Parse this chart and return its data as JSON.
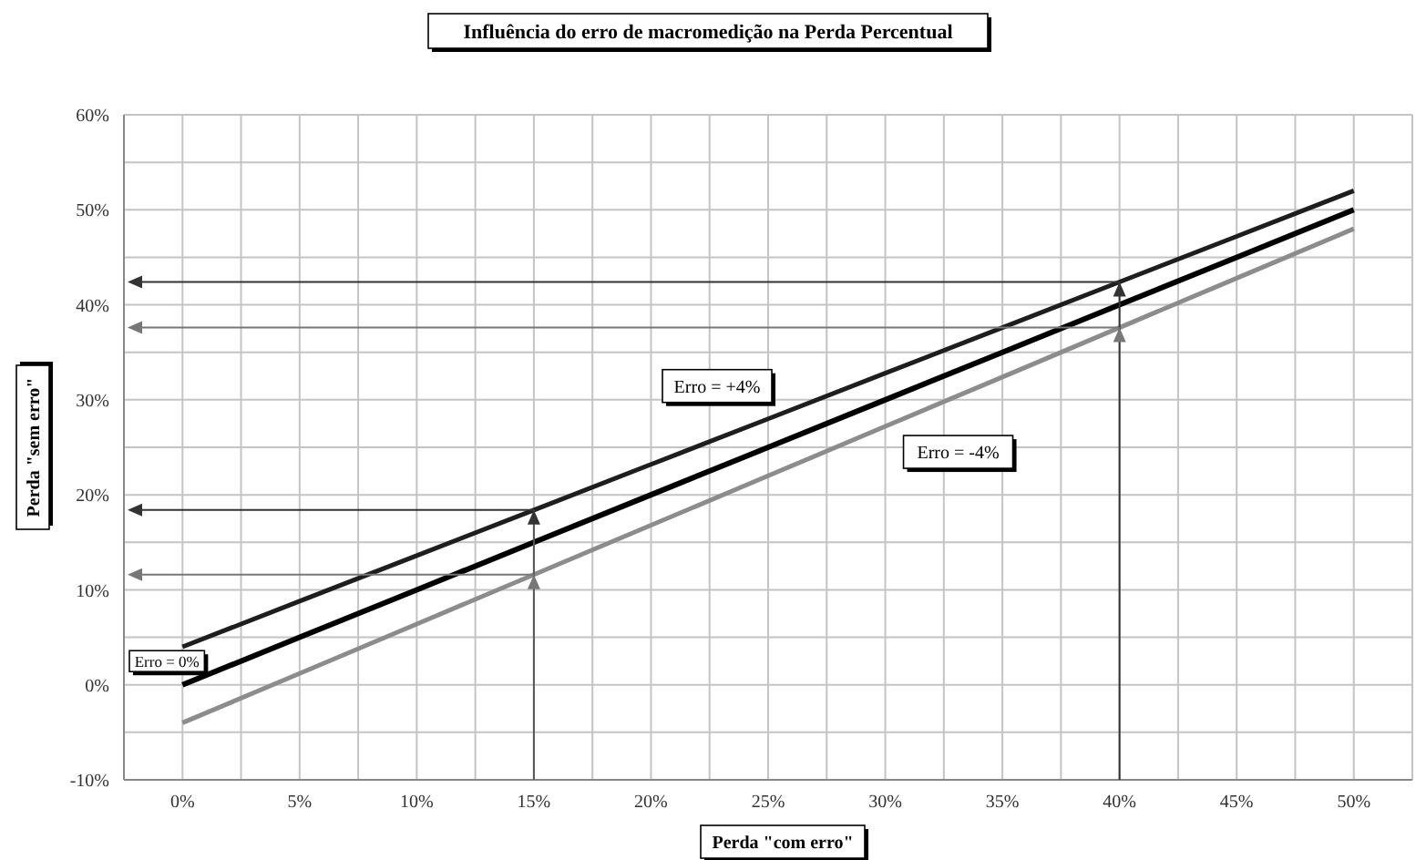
{
  "chart_data": {
    "type": "line",
    "title": "Influência do erro de macromedição na Perda Percentual",
    "xlabel": "Perda \"com erro\"",
    "ylabel": "Perda \"sem erro\"",
    "x": [
      0,
      5,
      10,
      15,
      20,
      25,
      30,
      35,
      40,
      45,
      50
    ],
    "series": [
      {
        "name": "Erro = +4%",
        "color": "#1e1e1e",
        "values": [
          4,
          8.8,
          13.6,
          18.4,
          23.2,
          28,
          32.8,
          37.6,
          42.4,
          47.2,
          52
        ]
      },
      {
        "name": "Erro = 0%",
        "color": "#000000",
        "values": [
          0,
          5,
          10,
          15,
          20,
          25,
          30,
          35,
          40,
          45,
          50
        ]
      },
      {
        "name": "Erro = -4%",
        "color": "#8c8c8c",
        "values": [
          -4,
          1.2,
          6.4,
          11.6,
          16.8,
          22,
          27.2,
          32.4,
          37.6,
          42.8,
          48
        ]
      }
    ],
    "xlim": [
      -2.5,
      52.5
    ],
    "xticks": [
      {
        "value": 0,
        "label": "0%"
      },
      {
        "value": 2.5,
        "label": null
      },
      {
        "value": 5,
        "label": "5%"
      },
      {
        "value": 7.5,
        "label": null
      },
      {
        "value": 10,
        "label": "10%"
      },
      {
        "value": 12.5,
        "label": null
      },
      {
        "value": 15,
        "label": "15%"
      },
      {
        "value": 17.5,
        "label": null
      },
      {
        "value": 20,
        "label": "20%"
      },
      {
        "value": 22.5,
        "label": null
      },
      {
        "value": 25,
        "label": "25%"
      },
      {
        "value": 27.5,
        "label": null
      },
      {
        "value": 30,
        "label": "30%"
      },
      {
        "value": 32.5,
        "label": null
      },
      {
        "value": 35,
        "label": "35%"
      },
      {
        "value": 37.5,
        "label": null
      },
      {
        "value": 40,
        "label": "40%"
      },
      {
        "value": 42.5,
        "label": null
      },
      {
        "value": 45,
        "label": "45%"
      },
      {
        "value": 47.5,
        "label": null
      },
      {
        "value": 50,
        "label": "50%"
      }
    ],
    "ylim": [
      -10,
      60
    ],
    "yticks": [
      {
        "value": -10,
        "label": "-10%"
      },
      {
        "value": -5,
        "label": null
      },
      {
        "value": 0,
        "label": "0%"
      },
      {
        "value": 5,
        "label": null
      },
      {
        "value": 10,
        "label": "10%"
      },
      {
        "value": 15,
        "label": null
      },
      {
        "value": 20,
        "label": "20%"
      },
      {
        "value": 25,
        "label": null
      },
      {
        "value": 30,
        "label": "30%"
      },
      {
        "value": 35,
        "label": null
      },
      {
        "value": 40,
        "label": "40%"
      },
      {
        "value": 45,
        "label": null
      },
      {
        "value": 50,
        "label": "50%"
      },
      {
        "value": 55,
        "label": null
      },
      {
        "value": 60,
        "label": "60%"
      }
    ],
    "ref_lines": [
      {
        "axis": "x",
        "value": 15,
        "color": "#555555"
      },
      {
        "axis": "x",
        "value": 40,
        "color": "#333333"
      },
      {
        "axis": "y",
        "value": 18.4,
        "color": "#333333"
      },
      {
        "axis": "y",
        "value": 11.6,
        "color": "#777777"
      },
      {
        "axis": "y",
        "value": 42.4,
        "color": "#333333"
      },
      {
        "axis": "y",
        "value": 37.6,
        "color": "#777777"
      }
    ],
    "grid": true,
    "legend": false,
    "marker": "none",
    "line_style": "solid"
  }
}
